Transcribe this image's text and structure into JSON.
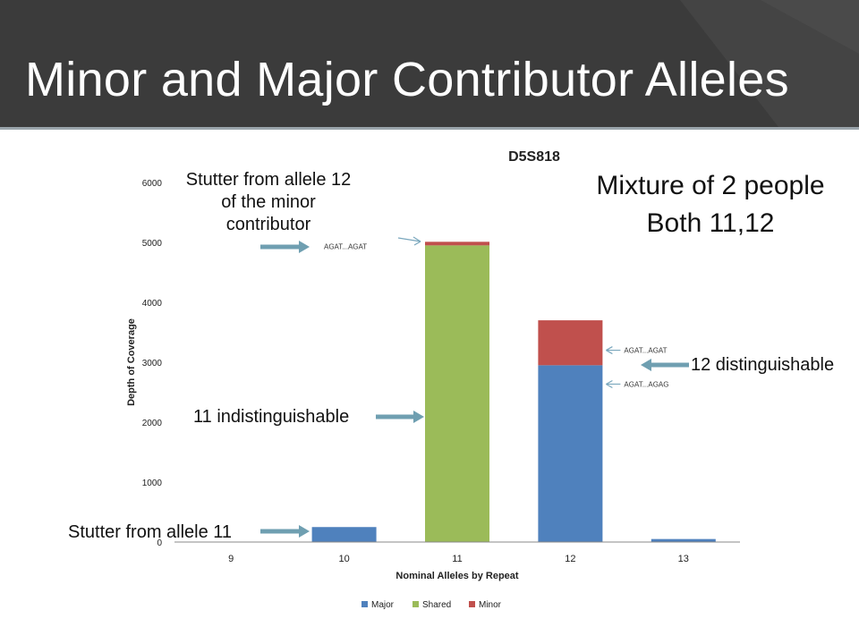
{
  "slide": {
    "title": "Minor and Major Contributor Alleles",
    "callouts": {
      "stutter_minor": "Stutter from allele 12 of the minor contributor",
      "indistinguishable": "11 indistinguishable",
      "stutter_11": "Stutter from allele 11",
      "distinguishable": "12 distinguishable",
      "mixture_line1": "Mixture of 2 people",
      "mixture_line2": "Both 11,12"
    }
  },
  "chart_data": {
    "type": "bar",
    "stacked": true,
    "title": "D5S818",
    "xlabel": "Nominal Alleles by Repeat",
    "ylabel": "Depth of Coverage",
    "categories": [
      "9",
      "10",
      "11",
      "12",
      "13"
    ],
    "ylim": [
      0,
      6000
    ],
    "yticks": [
      0,
      1000,
      2000,
      3000,
      4000,
      5000,
      6000
    ],
    "series": [
      {
        "name": "Major",
        "color": "#4f81bd",
        "values": [
          0,
          250,
          0,
          2950,
          50
        ]
      },
      {
        "name": "Shared",
        "color": "#9bbb59",
        "values": [
          0,
          0,
          4950,
          0,
          0
        ]
      },
      {
        "name": "Minor",
        "color": "#c0504d",
        "values": [
          0,
          0,
          60,
          750,
          0
        ]
      }
    ],
    "legend_position": "bottom",
    "grid": false,
    "annotations": [
      {
        "text": "AGAT...AGAT",
        "category": "11",
        "value": 5020
      },
      {
        "text": "AGAT...AGAT",
        "category": "12",
        "value": 3350
      },
      {
        "text": "AGAT...AGAG",
        "category": "12",
        "value": 2620
      }
    ]
  }
}
